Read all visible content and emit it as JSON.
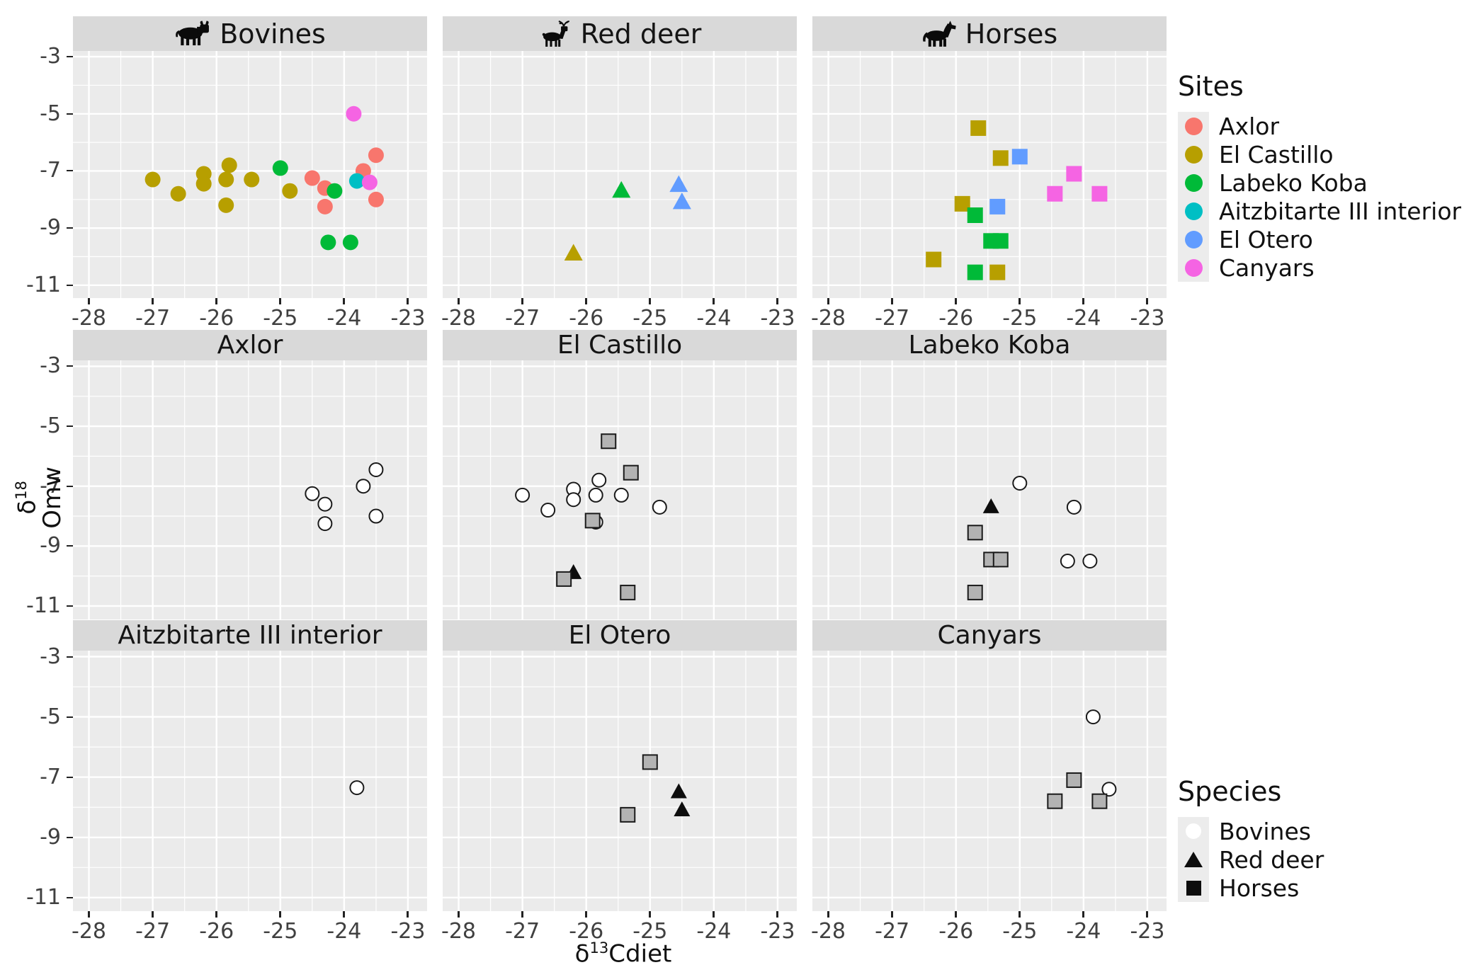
{
  "figure": {
    "x_axis_title": {
      "delta": "δ",
      "sup": "13",
      "rest": "Cdiet"
    },
    "y_axis_title": {
      "delta": "δ",
      "sup": "18",
      "line2": "Omw"
    }
  },
  "legends": {
    "sites": {
      "title": "Sites",
      "items": [
        {
          "label": "Axlor",
          "color": "#F8766D"
        },
        {
          "label": "El Castillo",
          "color": "#B79F00"
        },
        {
          "label": "Labeko Koba",
          "color": "#00BA38"
        },
        {
          "label": "Aitzbitarte III interior",
          "color": "#00BFC4"
        },
        {
          "label": "El Otero",
          "color": "#619CFF"
        },
        {
          "label": "Canyars",
          "color": "#F564E3"
        }
      ]
    },
    "species": {
      "title": "Species",
      "items": [
        {
          "label": "Bovines",
          "shape": "circle-open"
        },
        {
          "label": "Red deer",
          "shape": "triangle-filled"
        },
        {
          "label": "Horses",
          "shape": "square-filled"
        }
      ]
    }
  },
  "chart_data": {
    "type": "scatter",
    "xlabel": "δ13Cdiet",
    "ylabel": "δ18Omw",
    "x_ticks": [
      -28,
      -27,
      -26,
      -25,
      -24,
      -23
    ],
    "y_ticks": [
      -3,
      -5,
      -7,
      -9,
      -11
    ],
    "x_minor_ticks": [
      -27.5,
      -26.5,
      -25.5,
      -24.5,
      -23.5
    ],
    "y_minor_ticks": [
      -4,
      -6,
      -8,
      -10
    ],
    "x_range": [
      -28.25,
      -22.7
    ],
    "y_range": [
      -2.8,
      -11.45
    ],
    "grid": "on",
    "panel_background": "#EBEBEB",
    "strip_background": "#D9D9D9",
    "site_colors": {
      "Axlor": "#F8766D",
      "El Castillo": "#B79F00",
      "Labeko Koba": "#00BA38",
      "Aitzbitarte III interior": "#00BFC4",
      "El Otero": "#619CFF",
      "Canyars": "#F564E3"
    },
    "species_shapes": {
      "Bovines": "circle",
      "Red deer": "triangle",
      "Horses": "square"
    },
    "panels": [
      {
        "id": "bovines",
        "row": 0,
        "col": 0,
        "label": "Bovines",
        "icon": "cow-icon",
        "filter": "species",
        "value": "Bovines"
      },
      {
        "id": "red-deer",
        "row": 0,
        "col": 1,
        "label": "Red deer",
        "icon": "deer-icon",
        "filter": "species",
        "value": "Red deer"
      },
      {
        "id": "horses",
        "row": 0,
        "col": 2,
        "label": "Horses",
        "icon": "horse-icon",
        "filter": "species",
        "value": "Horses"
      },
      {
        "id": "axlor",
        "row": 1,
        "col": 0,
        "label": "Axlor",
        "filter": "site",
        "value": "Axlor"
      },
      {
        "id": "el-castillo",
        "row": 1,
        "col": 1,
        "label": "El Castillo",
        "filter": "site",
        "value": "El Castillo"
      },
      {
        "id": "labeko-koba",
        "row": 1,
        "col": 2,
        "label": "Labeko Koba",
        "filter": "site",
        "value": "Labeko Koba"
      },
      {
        "id": "aitzbitarte",
        "row": 2,
        "col": 0,
        "label": "Aitzbitarte III interior",
        "filter": "site",
        "value": "Aitzbitarte III interior"
      },
      {
        "id": "el-otero",
        "row": 2,
        "col": 1,
        "label": "El Otero",
        "filter": "site",
        "value": "El Otero"
      },
      {
        "id": "canyars",
        "row": 2,
        "col": 2,
        "label": "Canyars",
        "filter": "site",
        "value": "Canyars"
      }
    ],
    "points": [
      {
        "site": "Axlor",
        "species": "Bovines",
        "x": -24.5,
        "y": -7.25
      },
      {
        "site": "Axlor",
        "species": "Bovines",
        "x": -24.3,
        "y": -7.6
      },
      {
        "site": "Axlor",
        "species": "Bovines",
        "x": -24.3,
        "y": -8.25
      },
      {
        "site": "Axlor",
        "species": "Bovines",
        "x": -23.7,
        "y": -7.0
      },
      {
        "site": "Axlor",
        "species": "Bovines",
        "x": -23.5,
        "y": -6.45
      },
      {
        "site": "Axlor",
        "species": "Bovines",
        "x": -23.5,
        "y": -8.0
      },
      {
        "site": "El Castillo",
        "species": "Bovines",
        "x": -27.0,
        "y": -7.3
      },
      {
        "site": "El Castillo",
        "species": "Bovines",
        "x": -26.6,
        "y": -7.8
      },
      {
        "site": "El Castillo",
        "species": "Bovines",
        "x": -26.2,
        "y": -7.1
      },
      {
        "site": "El Castillo",
        "species": "Bovines",
        "x": -26.2,
        "y": -7.45
      },
      {
        "site": "El Castillo",
        "species": "Bovines",
        "x": -25.8,
        "y": -6.8
      },
      {
        "site": "El Castillo",
        "species": "Bovines",
        "x": -25.85,
        "y": -7.3
      },
      {
        "site": "El Castillo",
        "species": "Bovines",
        "x": -25.45,
        "y": -7.3
      },
      {
        "site": "El Castillo",
        "species": "Bovines",
        "x": -25.85,
        "y": -8.2
      },
      {
        "site": "El Castillo",
        "species": "Bovines",
        "x": -24.85,
        "y": -7.7
      },
      {
        "site": "El Castillo",
        "species": "Red deer",
        "x": -26.2,
        "y": -9.9
      },
      {
        "site": "El Castillo",
        "species": "Horses",
        "x": -25.65,
        "y": -5.5
      },
      {
        "site": "El Castillo",
        "species": "Horses",
        "x": -25.3,
        "y": -6.55
      },
      {
        "site": "El Castillo",
        "species": "Horses",
        "x": -25.9,
        "y": -8.15
      },
      {
        "site": "El Castillo",
        "species": "Horses",
        "x": -26.35,
        "y": -10.1
      },
      {
        "site": "El Castillo",
        "species": "Horses",
        "x": -25.35,
        "y": -10.55
      },
      {
        "site": "Labeko Koba",
        "species": "Bovines",
        "x": -25.0,
        "y": -6.9
      },
      {
        "site": "Labeko Koba",
        "species": "Bovines",
        "x": -24.15,
        "y": -7.7
      },
      {
        "site": "Labeko Koba",
        "species": "Bovines",
        "x": -24.25,
        "y": -9.5
      },
      {
        "site": "Labeko Koba",
        "species": "Bovines",
        "x": -23.9,
        "y": -9.5
      },
      {
        "site": "Labeko Koba",
        "species": "Red deer",
        "x": -25.45,
        "y": -7.7
      },
      {
        "site": "Labeko Koba",
        "species": "Horses",
        "x": -25.7,
        "y": -8.55
      },
      {
        "site": "Labeko Koba",
        "species": "Horses",
        "x": -25.45,
        "y": -9.45
      },
      {
        "site": "Labeko Koba",
        "species": "Horses",
        "x": -25.3,
        "y": -9.45
      },
      {
        "site": "Labeko Koba",
        "species": "Horses",
        "x": -25.7,
        "y": -10.55
      },
      {
        "site": "Aitzbitarte III interior",
        "species": "Bovines",
        "x": -23.8,
        "y": -7.35
      },
      {
        "site": "El Otero",
        "species": "Red deer",
        "x": -24.55,
        "y": -7.5
      },
      {
        "site": "El Otero",
        "species": "Red deer",
        "x": -24.5,
        "y": -8.1
      },
      {
        "site": "El Otero",
        "species": "Horses",
        "x": -25.0,
        "y": -6.5
      },
      {
        "site": "El Otero",
        "species": "Horses",
        "x": -25.35,
        "y": -8.25
      },
      {
        "site": "Canyars",
        "species": "Bovines",
        "x": -23.85,
        "y": -5.0
      },
      {
        "site": "Canyars",
        "species": "Bovines",
        "x": -23.6,
        "y": -7.4
      },
      {
        "site": "Canyars",
        "species": "Horses",
        "x": -24.15,
        "y": -7.1
      },
      {
        "site": "Canyars",
        "species": "Horses",
        "x": -24.45,
        "y": -7.8
      },
      {
        "site": "Canyars",
        "species": "Horses",
        "x": -23.75,
        "y": -7.8
      }
    ]
  }
}
